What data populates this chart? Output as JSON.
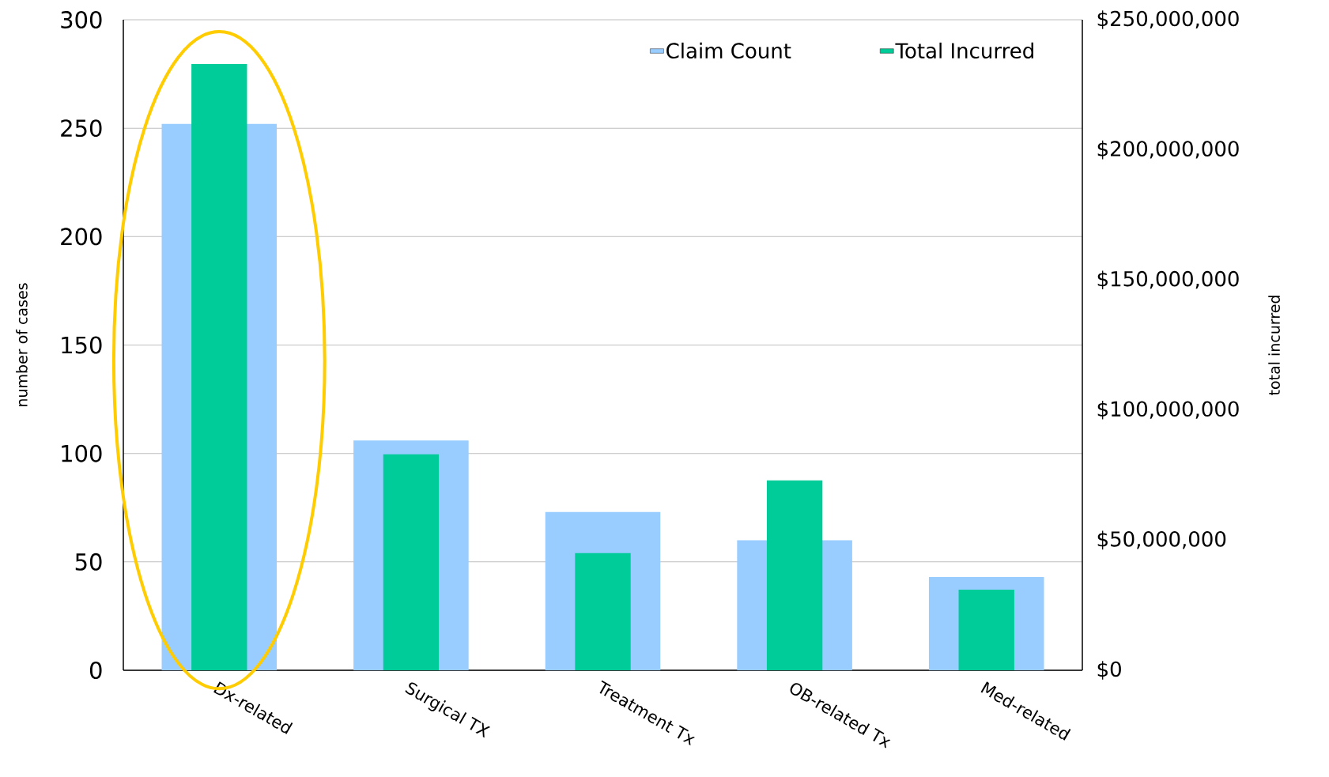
{
  "chart_data": {
    "type": "bar",
    "categories": [
      "Dx-related",
      "Surgical TX",
      "Treatment Tx",
      "OB-related Tx",
      "Med-related"
    ],
    "series": [
      {
        "name": "Claim Count",
        "color": "#99ccff",
        "values": [
          252,
          106,
          73,
          60,
          43
        ]
      },
      {
        "name": "Total Incurred",
        "color": "#00cc99",
        "axis": "y2",
        "values": [
          233000000,
          83000000,
          45000000,
          73000000,
          31000000
        ]
      }
    ],
    "ylabel": "number of cases",
    "y2label": "total incurred",
    "ylim": [
      0,
      300
    ],
    "yticks": [
      0,
      50,
      100,
      150,
      200,
      250,
      300
    ],
    "y2lim": [
      0,
      250000000
    ],
    "y2ticks": [
      {
        "value": 0,
        "label": "$0"
      },
      {
        "value": 50000000,
        "label": "$50,000,000"
      },
      {
        "value": 100000000,
        "label": "$100,000,000"
      },
      {
        "value": 150000000,
        "label": "$150,000,000"
      },
      {
        "value": 200000000,
        "label": "$200,000,000"
      },
      {
        "value": 250000000,
        "label": "$250,000,000"
      }
    ],
    "grid": "y",
    "legend": "top right"
  }
}
